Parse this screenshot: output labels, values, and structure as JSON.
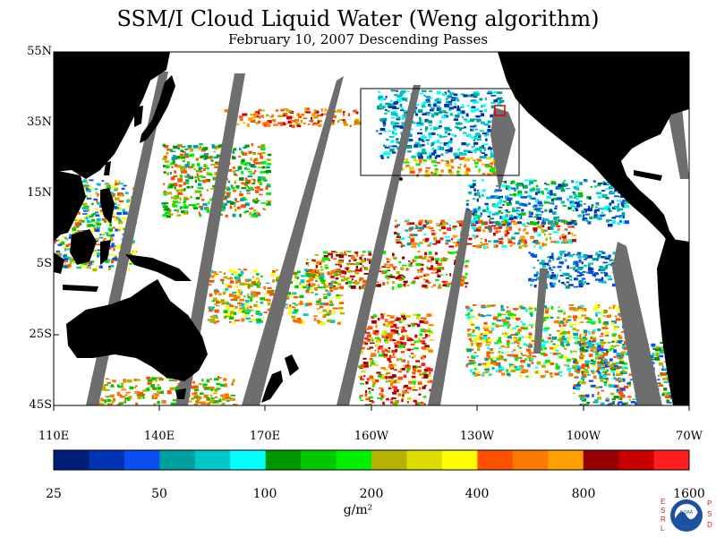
{
  "header": {
    "title": "SSM/I Cloud Liquid Water (Weng algorithm)",
    "subtitle": "February 10, 2007  Descending Passes"
  },
  "map": {
    "lat_labels": [
      "55N",
      "35N",
      "15N",
      "5S",
      "25S",
      "45S"
    ],
    "lon_labels": [
      "110E",
      "140E",
      "170E",
      "160W",
      "130W",
      "100W",
      "70W"
    ],
    "colors": {
      "land": "#000000",
      "no_data_swath_gap": "#6e6e6e",
      "clear_sky": "#ffffff"
    }
  },
  "colorbar": {
    "tick_labels": [
      "25",
      "50",
      "100",
      "200",
      "400",
      "800",
      "1600"
    ],
    "units": "g/m²",
    "colors": [
      "#001e78",
      "#0032b4",
      "#0a4ff0",
      "#00a0a0",
      "#00c8c8",
      "#00ffff",
      "#009600",
      "#00c800",
      "#00f000",
      "#b4b400",
      "#dcdc00",
      "#ffff00",
      "#ff5000",
      "#ff7800",
      "#ffa000",
      "#960000",
      "#c80000",
      "#ff1e1e"
    ]
  },
  "logo": {
    "left_letters": [
      "E",
      "S",
      "R",
      "L"
    ],
    "right_letters": [
      "P",
      "S",
      "D"
    ],
    "emblem_text": "NOAA"
  }
}
